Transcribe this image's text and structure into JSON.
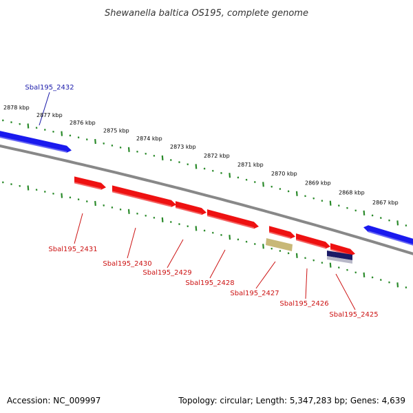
{
  "title": "Shewanella baltica OS195, complete genome",
  "footer": {
    "accession": "Accession: NC_009997",
    "summary": "Topology: circular; Length: 5,347,283 bp; Genes: 4,639"
  },
  "colors": {
    "forward_gene": "#1a1aee",
    "reverse_gene": "#ee1111",
    "rna_gene": "#c8b878",
    "misc_feature": "#1a1a66",
    "label_forward": "#1a1aaa",
    "label_reverse": "#cc1111",
    "tick": "#2a8a2a",
    "backbone": "#888888"
  },
  "ticks": [
    {
      "label": "2878 kbp"
    },
    {
      "label": "2877 kbp"
    },
    {
      "label": "2876 kbp"
    },
    {
      "label": "2875 kbp"
    },
    {
      "label": "2874 kbp"
    },
    {
      "label": "2873 kbp"
    },
    {
      "label": "2872 kbp"
    },
    {
      "label": "2871 kbp"
    },
    {
      "label": "2870 kbp"
    },
    {
      "label": "2869 kbp"
    },
    {
      "label": "2868 kbp"
    },
    {
      "label": "2867 kbp"
    }
  ],
  "genes": [
    {
      "label": "Sbal195_2432",
      "strand": "forward"
    },
    {
      "label": "Sbal195_2431",
      "strand": "reverse"
    },
    {
      "label": "Sbal195_2430",
      "strand": "reverse"
    },
    {
      "label": "Sbal195_2429",
      "strand": "reverse"
    },
    {
      "label": "Sbal195_2428",
      "strand": "reverse"
    },
    {
      "label": "Sbal195_2427",
      "strand": "reverse"
    },
    {
      "label": "Sbal195_2426",
      "strand": "reverse"
    },
    {
      "label": "Sbal195_2425",
      "strand": "reverse"
    }
  ]
}
